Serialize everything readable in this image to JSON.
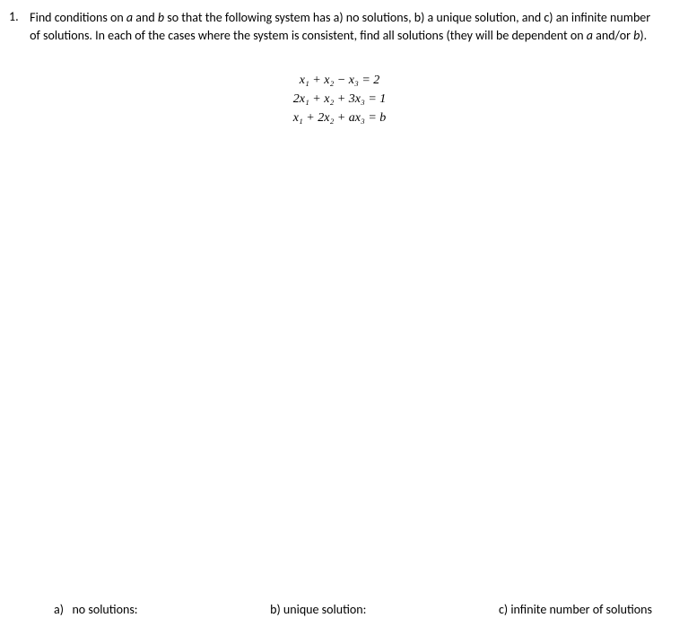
{
  "question": {
    "number": "1.",
    "text_part1": "Find conditions on ",
    "var_a": "a",
    "text_part2": " and ",
    "var_b": "b",
    "text_part3": " so that the following system has a) no solutions, b) a unique solution, and c) an infinite number of solutions. In each of the cases where the system is consistent, find all solutions (they will be dependent on ",
    "text_part4": " and/or ",
    "text_part5": ")."
  },
  "equations": {
    "eq1": "x₁ + x₂ − x₃ = 2",
    "eq2": "2x₁ + x₂ + 3x₃ = 1",
    "eq3_part1": "x₁ + 2x₂ + ",
    "eq3_var_a": "a",
    "eq3_part2": "x₃ = ",
    "eq3_var_b": "b"
  },
  "answers": {
    "a_label": "a)",
    "a_text": "no solutions:",
    "b_label": "b) unique solution:",
    "c_label": "c) infinite number of solutions"
  }
}
